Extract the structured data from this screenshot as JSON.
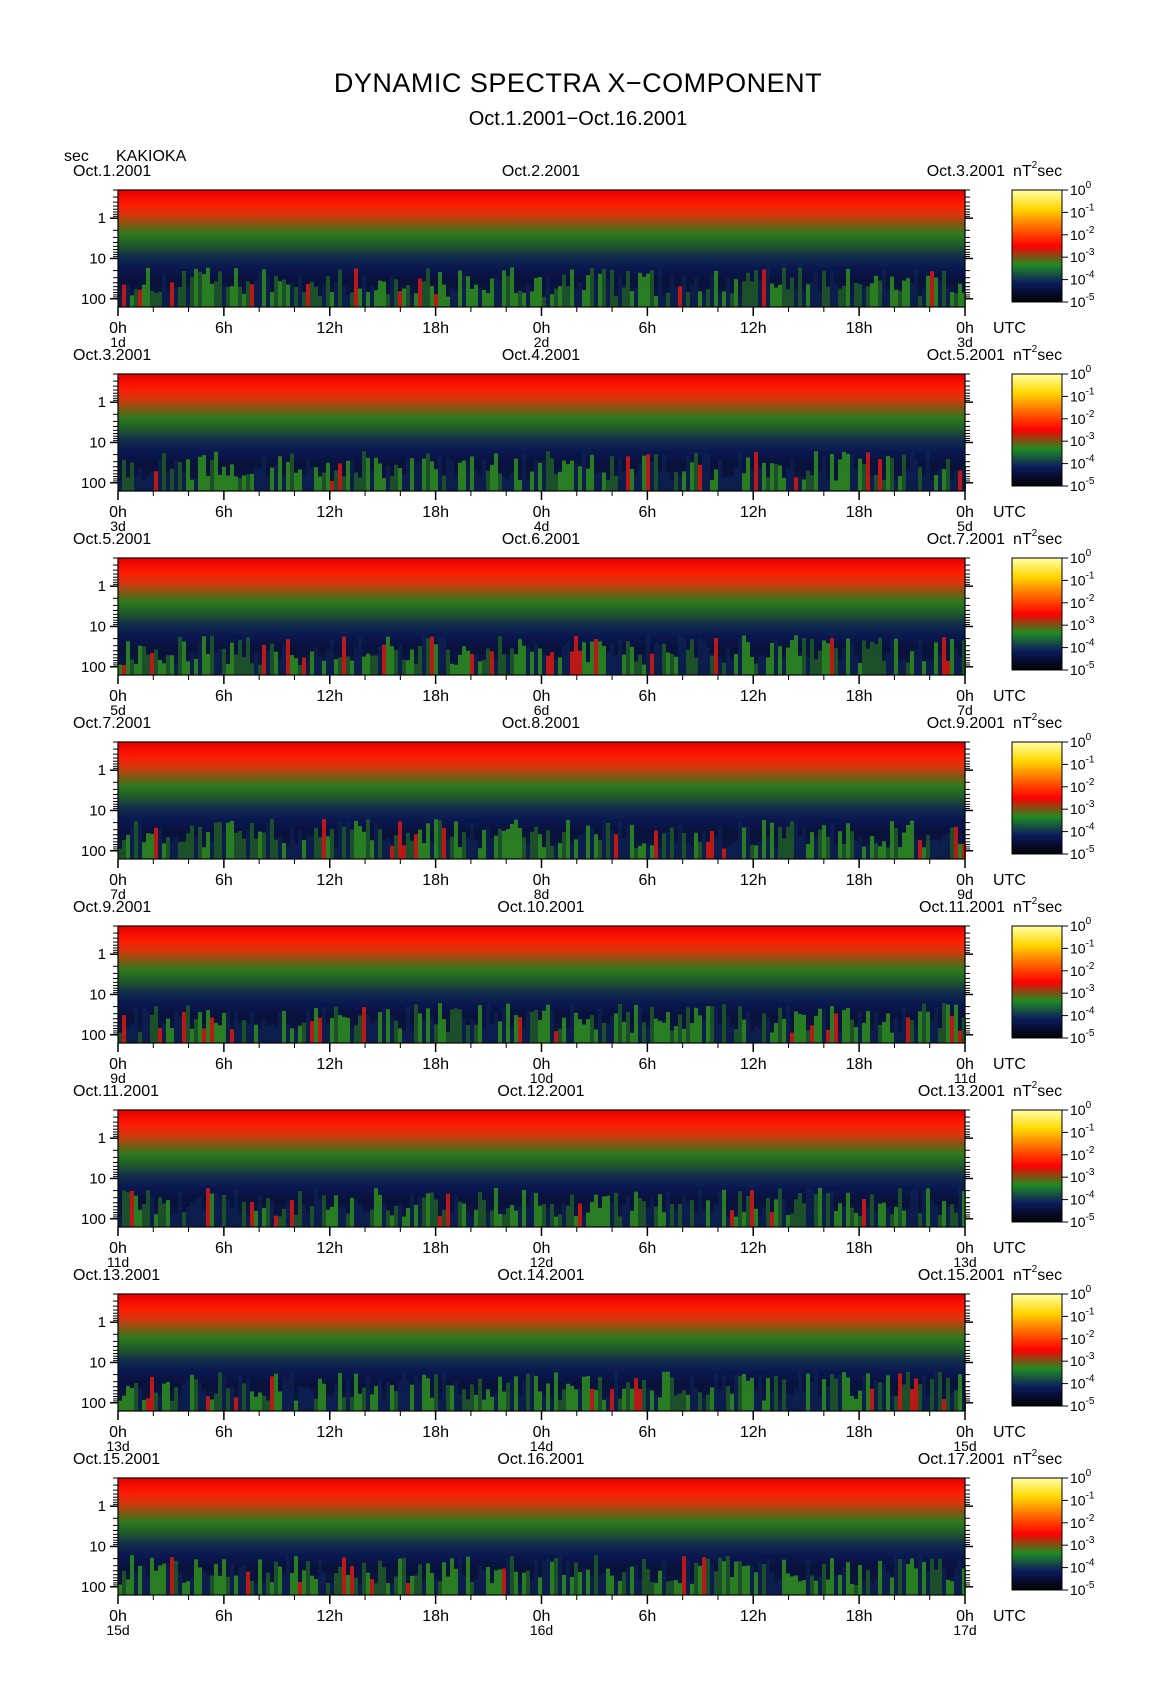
{
  "header": {
    "title": "DYNAMIC SPECTRA X−COMPONENT",
    "subtitle": "Oct.1.2001−Oct.16.2001",
    "unit_label": "sec",
    "station": "KAKIOKA"
  },
  "chart_data": {
    "type": "heatmap",
    "y_axis": {
      "quantity": "period",
      "unit": "sec",
      "scale": "log",
      "ticks": [
        1,
        10,
        100
      ],
      "tick_labels": [
        "1",
        "10",
        "100"
      ]
    },
    "x_tick_labels": [
      "0h",
      "6h",
      "12h",
      "18h",
      "0h",
      "6h",
      "12h",
      "18h",
      "0h"
    ],
    "time_zone_label": "UTC",
    "colorbar": {
      "unit_label": "nT²sec",
      "scale": "log",
      "ticks": [
        1,
        0.1,
        0.01,
        0.001,
        0.0001,
        1e-05
      ],
      "tick_labels": [
        {
          "base": "10",
          "exp": "0"
        },
        {
          "base": "10",
          "exp": "-1"
        },
        {
          "base": "10",
          "exp": "-2"
        },
        {
          "base": "10",
          "exp": "-3"
        },
        {
          "base": "10",
          "exp": "-4"
        },
        {
          "base": "10",
          "exp": "-5"
        }
      ],
      "colors": [
        "#ffffaa",
        "#ffd800",
        "#ff6a00",
        "#ff0000",
        "#228b22",
        "#0c1a5c",
        "#000000"
      ]
    },
    "panels": [
      {
        "date_left": "Oct.1.2001",
        "date_mid": "Oct.2.2001",
        "date_right": "Oct.3.2001",
        "day_labels": [
          "1d",
          "2d",
          "3d"
        ]
      },
      {
        "date_left": "Oct.3.2001",
        "date_mid": "Oct.4.2001",
        "date_right": "Oct.5.2001",
        "day_labels": [
          "3d",
          "4d",
          "5d"
        ]
      },
      {
        "date_left": "Oct.5.2001",
        "date_mid": "Oct.6.2001",
        "date_right": "Oct.7.2001",
        "day_labels": [
          "5d",
          "6d",
          "7d"
        ]
      },
      {
        "date_left": "Oct.7.2001",
        "date_mid": "Oct.8.2001",
        "date_right": "Oct.9.2001",
        "day_labels": [
          "7d",
          "8d",
          "9d"
        ]
      },
      {
        "date_left": "Oct.9.2001",
        "date_mid": "Oct.10.2001",
        "date_right": "Oct.11.2001",
        "day_labels": [
          "9d",
          "10d",
          "11d"
        ]
      },
      {
        "date_left": "Oct.11.2001",
        "date_mid": "Oct.12.2001",
        "date_right": "Oct.13.2001",
        "day_labels": [
          "11d",
          "12d",
          "13d"
        ]
      },
      {
        "date_left": "Oct.13.2001",
        "date_mid": "Oct.14.2001",
        "date_right": "Oct.15.2001",
        "day_labels": [
          "13d",
          "14d",
          "15d"
        ]
      },
      {
        "date_left": "Oct.15.2001",
        "date_mid": "Oct.16.2001",
        "date_right": "Oct.17.2001",
        "day_labels": [
          "15d",
          "16d",
          "17d"
        ]
      }
    ]
  }
}
